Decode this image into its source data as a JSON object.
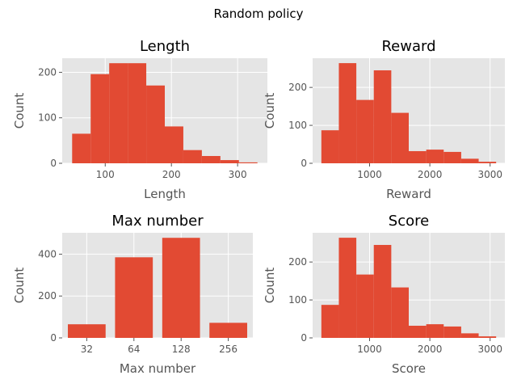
{
  "figure": {
    "suptitle": "Random policy"
  },
  "style": {
    "bar_color": "#E24A33",
    "axes_bg": "#E5E5E5",
    "grid_color": "#FFFFFF",
    "tick_color": "#555555"
  },
  "chart_data": [
    {
      "type": "bar",
      "title": "Length",
      "xlabel": "Length",
      "ylabel": "Count",
      "histogram": true,
      "bin_edges": [
        50,
        78,
        106,
        134,
        162,
        190,
        218,
        246,
        274,
        302,
        330
      ],
      "values": [
        65,
        196,
        220,
        220,
        171,
        81,
        29,
        16,
        7,
        2
      ],
      "xticks": [
        100,
        200,
        300
      ],
      "yticks": [
        0,
        100,
        200
      ],
      "xlim": [
        35,
        345
      ],
      "ylim": [
        0,
        231
      ],
      "grid": true
    },
    {
      "type": "bar",
      "title": "Reward",
      "xlabel": "Reward",
      "ylabel": "Count",
      "histogram": true,
      "bin_edges": [
        200,
        490,
        780,
        1070,
        1360,
        1650,
        1940,
        2230,
        2520,
        2810,
        3100
      ],
      "values": [
        87,
        264,
        167,
        245,
        133,
        32,
        36,
        30,
        12,
        4
      ],
      "xticks": [
        1000,
        2000,
        3000
      ],
      "yticks": [
        0,
        100,
        200
      ],
      "xlim": [
        55,
        3245
      ],
      "ylim": [
        0,
        277
      ],
      "grid": true
    },
    {
      "type": "bar",
      "title": "Max number",
      "xlabel": "Max number",
      "ylabel": "Count",
      "histogram": false,
      "categories": [
        "32",
        "64",
        "128",
        "256"
      ],
      "values": [
        65,
        385,
        478,
        72
      ],
      "yticks": [
        0,
        200,
        400
      ],
      "ylim": [
        0,
        502
      ],
      "grid": true
    },
    {
      "type": "bar",
      "title": "Score",
      "xlabel": "Score",
      "ylabel": "Count",
      "histogram": true,
      "bin_edges": [
        200,
        490,
        780,
        1070,
        1360,
        1650,
        1940,
        2230,
        2520,
        2810,
        3100
      ],
      "values": [
        87,
        264,
        167,
        245,
        133,
        32,
        36,
        30,
        12,
        4
      ],
      "xticks": [
        1000,
        2000,
        3000
      ],
      "yticks": [
        0,
        100,
        200
      ],
      "xlim": [
        55,
        3245
      ],
      "ylim": [
        0,
        277
      ],
      "grid": true
    }
  ]
}
